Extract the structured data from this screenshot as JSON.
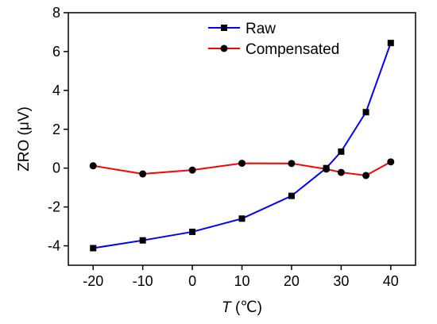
{
  "chart_data": {
    "type": "line",
    "xlabel_italic": "T",
    "xlabel_unit": "(℃)",
    "ylabel": "ZRO (μV)",
    "xlim": [
      -25,
      45
    ],
    "ylim": [
      -5,
      8
    ],
    "xticks": [
      -20,
      -10,
      0,
      10,
      20,
      30,
      40
    ],
    "yticks": [
      -4,
      -2,
      0,
      2,
      4,
      6,
      8
    ],
    "grid": false,
    "legend_position": "top-center",
    "series": [
      {
        "name": "Raw",
        "color": "#0000ff",
        "marker": "square",
        "x": [
          -20,
          -10,
          0,
          10,
          20,
          27,
          30,
          35,
          40
        ],
        "y": [
          -4.12,
          -3.72,
          -3.28,
          -2.6,
          -1.43,
          0.0,
          0.85,
          2.88,
          6.44
        ]
      },
      {
        "name": "Compensated",
        "color": "#ff0000",
        "marker": "circle",
        "x": [
          -20,
          -10,
          0,
          10,
          20,
          27,
          30,
          35,
          40
        ],
        "y": [
          0.12,
          -0.3,
          -0.1,
          0.25,
          0.24,
          -0.05,
          -0.22,
          -0.38,
          0.32
        ]
      }
    ]
  }
}
